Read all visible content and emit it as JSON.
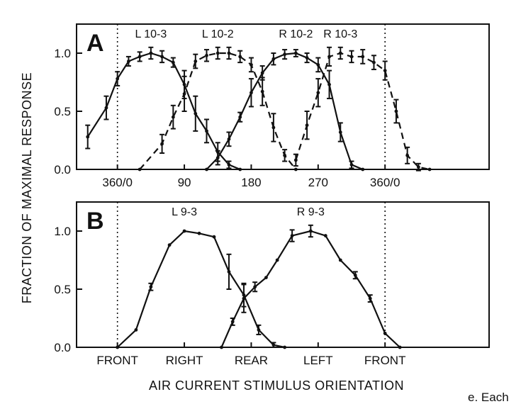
{
  "figure": {
    "ylabel": "FRACTION OF  MAXIMAL RESPONSE",
    "xlabel": "AIR CURRENT STIMULUS ORIENTATION",
    "caption_fragment": "e. Each"
  },
  "chart_data": [
    {
      "type": "line",
      "panel": "A",
      "ylim": [
        0,
        1.25
      ],
      "xlim": [
        -55,
        500
      ],
      "yticks": [
        0,
        0.5,
        1.0
      ],
      "ytick_labels": [
        "0.0",
        "0.5",
        "1.0"
      ],
      "xticks": [
        0,
        90,
        180,
        270,
        360
      ],
      "xtick_labels": [
        "360/0",
        "90",
        "180",
        "270",
        "360/0"
      ],
      "reference_lines_x": [
        0,
        360
      ],
      "series": [
        {
          "name": "L 10-3",
          "dash": false,
          "x": [
            -40,
            -15,
            0,
            15,
            30,
            45,
            60,
            75,
            90,
            105,
            120,
            135,
            150,
            165
          ],
          "y": [
            0.28,
            0.53,
            0.78,
            0.93,
            0.97,
            1.0,
            0.97,
            0.92,
            0.73,
            0.48,
            0.33,
            0.15,
            0.04,
            0.0
          ],
          "err": [
            0.1,
            0.1,
            0.06,
            0.04,
            0.04,
            0.05,
            0.05,
            0.04,
            0.12,
            0.15,
            0.1,
            0.08,
            0.03,
            0.0
          ]
        },
        {
          "name": "L 10-2",
          "dash": true,
          "x": [
            30,
            60,
            75,
            90,
            105,
            120,
            135,
            150,
            165,
            180,
            195,
            210,
            225,
            240
          ],
          "y": [
            0.0,
            0.22,
            0.45,
            0.65,
            0.93,
            0.98,
            1.0,
            1.0,
            0.97,
            0.9,
            0.67,
            0.36,
            0.12,
            0.0
          ],
          "err": [
            0.0,
            0.08,
            0.1,
            0.15,
            0.06,
            0.05,
            0.05,
            0.05,
            0.05,
            0.06,
            0.12,
            0.12,
            0.05,
            0.0
          ]
        },
        {
          "name": "R 10-2",
          "dash": false,
          "x": [
            120,
            135,
            150,
            165,
            180,
            195,
            210,
            225,
            240,
            255,
            270,
            285,
            300,
            315,
            330
          ],
          "y": [
            0.0,
            0.1,
            0.26,
            0.45,
            0.66,
            0.83,
            0.95,
            0.99,
            1.0,
            0.96,
            0.9,
            0.73,
            0.32,
            0.04,
            0.0
          ],
          "err": [
            0.0,
            0.06,
            0.06,
            0.04,
            0.12,
            0.06,
            0.05,
            0.04,
            0.03,
            0.04,
            0.06,
            0.12,
            0.08,
            0.03,
            0.0
          ]
        },
        {
          "name": "R 10-3",
          "dash": true,
          "x": [
            240,
            255,
            270,
            285,
            300,
            315,
            330,
            345,
            360,
            375,
            390,
            405,
            420
          ],
          "y": [
            0.08,
            0.38,
            0.66,
            0.97,
            1.0,
            0.97,
            0.97,
            0.92,
            0.85,
            0.5,
            0.12,
            0.02,
            0.0
          ],
          "err": [
            0.05,
            0.12,
            0.12,
            0.08,
            0.05,
            0.05,
            0.06,
            0.06,
            0.08,
            0.1,
            0.07,
            0.03,
            0.0
          ]
        }
      ]
    },
    {
      "type": "line",
      "panel": "B",
      "ylim": [
        0,
        1.25
      ],
      "xlim": [
        -55,
        500
      ],
      "yticks": [
        0,
        0.5,
        1.0
      ],
      "ytick_labels": [
        "0.0",
        "0.5",
        "1.0"
      ],
      "xticks": [
        0,
        90,
        180,
        270,
        360
      ],
      "xtick_labels": [
        "FRONT",
        "RIGHT",
        "REAR",
        "LEFT",
        "FRONT"
      ],
      "reference_lines_x": [
        0,
        360
      ],
      "series": [
        {
          "name": "L 9-3",
          "dash": false,
          "x": [
            0,
            25,
            45,
            70,
            90,
            110,
            130,
            150,
            170,
            190,
            210,
            225
          ],
          "y": [
            0.0,
            0.15,
            0.52,
            0.88,
            1.0,
            0.98,
            0.95,
            0.65,
            0.45,
            0.15,
            0.02,
            0.0
          ],
          "err": [
            0.0,
            0.0,
            0.03,
            0.0,
            0.0,
            0.0,
            0.0,
            0.15,
            0.1,
            0.04,
            0.02,
            0.0
          ]
        },
        {
          "name": "R 9-3",
          "dash": false,
          "x": [
            140,
            155,
            170,
            185,
            200,
            215,
            235,
            260,
            280,
            300,
            320,
            340,
            360,
            380
          ],
          "y": [
            0.0,
            0.22,
            0.42,
            0.52,
            0.6,
            0.75,
            0.96,
            1.0,
            0.96,
            0.75,
            0.62,
            0.42,
            0.12,
            0.0
          ],
          "err": [
            0.0,
            0.03,
            0.12,
            0.04,
            0.0,
            0.0,
            0.05,
            0.05,
            0.0,
            0.0,
            0.03,
            0.03,
            0.0,
            0.0
          ]
        }
      ]
    }
  ]
}
